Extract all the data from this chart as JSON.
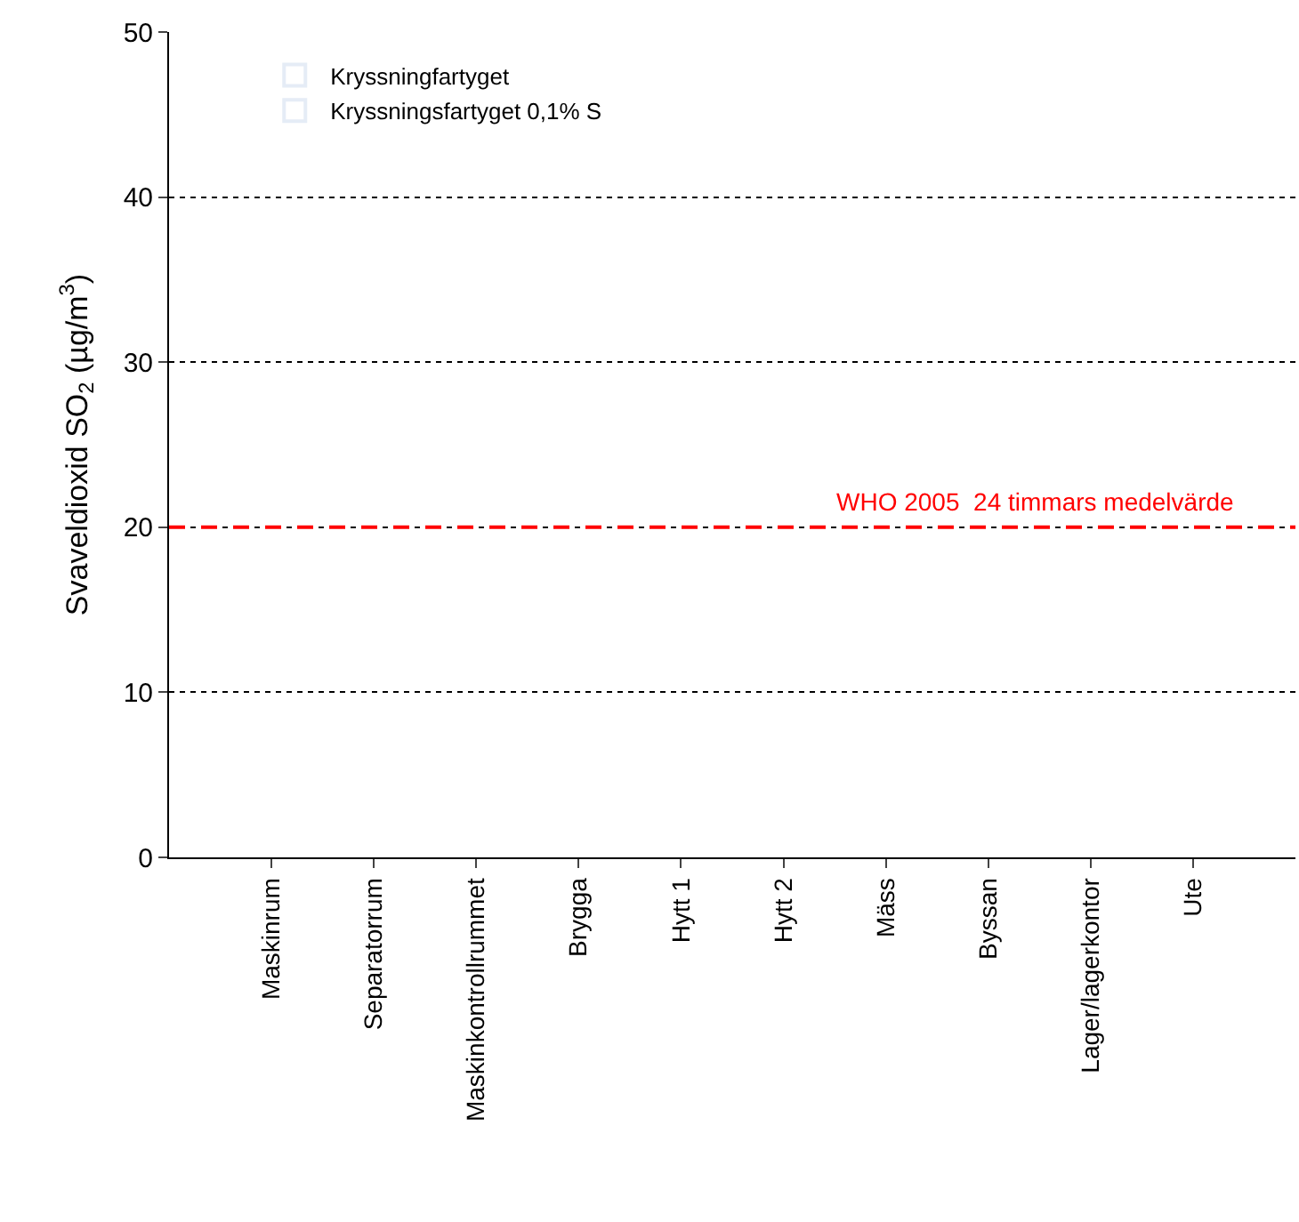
{
  "chart_data": {
    "type": "bar",
    "ylabel": "Svaveldioxid SO$_{2}$ (µg/m$^{3}$)",
    "categories": [
      "Maskinrum",
      "Separatorrum",
      "Maskinkontrollrummet",
      "Brygga",
      "Hytt 1",
      "Hytt 2",
      "Mäss",
      "Byssan",
      "Lager/lagerkontor",
      "Ute"
    ],
    "series": [
      {
        "name": "Kryssningfartyget",
        "color": "#ffffff",
        "values": [
          null,
          null,
          null,
          null,
          null,
          null,
          null,
          null,
          null,
          null
        ]
      },
      {
        "name": "Kryssningsfartyget 0,1% S",
        "color": "#ffffff",
        "values": [
          null,
          null,
          null,
          null,
          null,
          null,
          null,
          null,
          null,
          null
        ]
      }
    ],
    "ylim": [
      0,
      50
    ],
    "yticks": [
      0,
      10,
      20,
      30,
      40,
      50
    ],
    "grid": "y",
    "legend": "top left",
    "ref_lines": [
      {
        "axis": "y",
        "value": 20,
        "label": "WHO 2005  24 timmars medelvärde",
        "color": "#ff0000",
        "line_style": "dashed"
      }
    ]
  }
}
